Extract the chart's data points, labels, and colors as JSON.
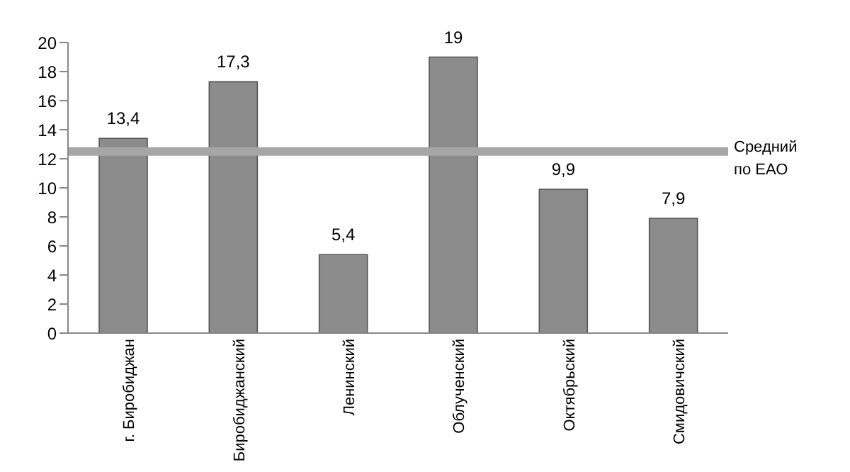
{
  "chart_data": {
    "type": "bar",
    "categories": [
      "г. Биробиджан",
      "Биробиджанский",
      "Ленинский",
      "Облученский",
      "Октябрьский",
      "Смидовичский"
    ],
    "values": [
      13.4,
      17.3,
      5.4,
      19,
      9.9,
      7.9
    ],
    "value_labels": [
      "13,4",
      "17,3",
      "5,4",
      "19",
      "9,9",
      "7,9"
    ],
    "color": "#8c8c8c",
    "ylim": [
      0,
      20
    ],
    "yticks": [
      0,
      2,
      4,
      6,
      8,
      10,
      12,
      14,
      16,
      18,
      20
    ],
    "grid": false,
    "legend": false,
    "ref_lines": [
      {
        "axis": "y",
        "value": 12.5,
        "label": "Средний по ЕАО",
        "color": "#a6a6a6"
      }
    ]
  }
}
